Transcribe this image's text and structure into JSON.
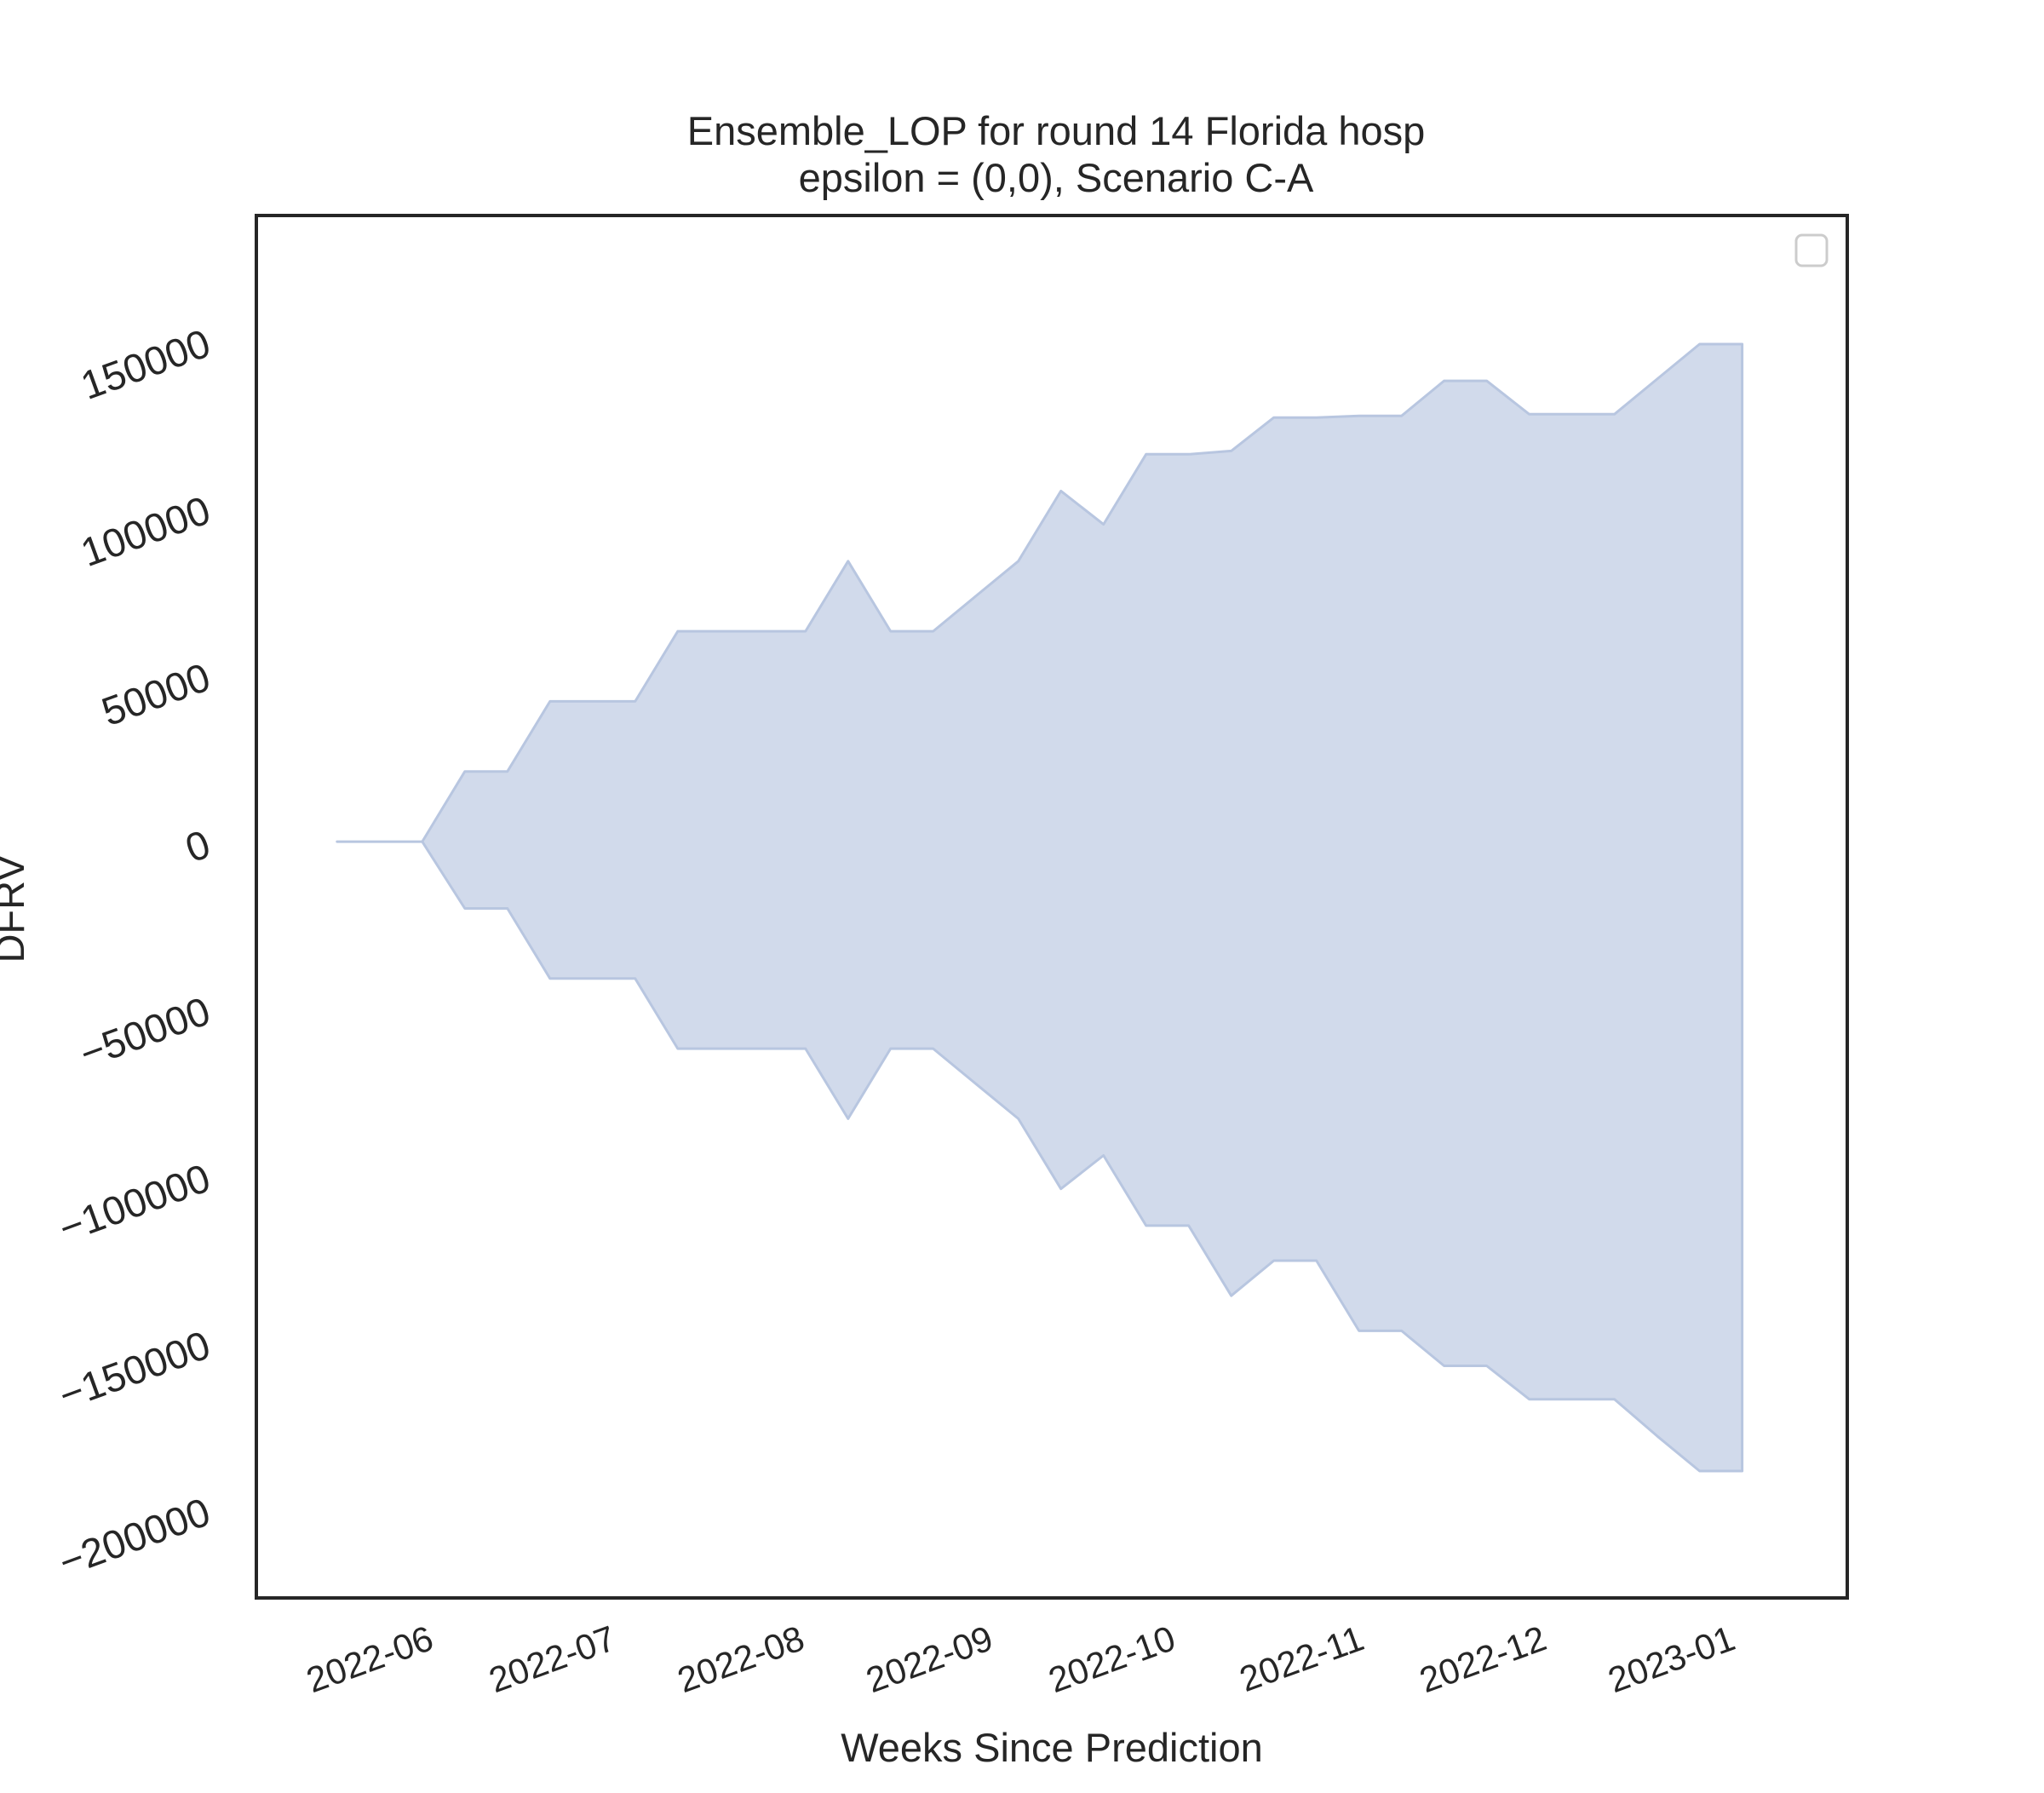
{
  "chart_data": {
    "type": "area",
    "title": "Ensemble_LOP for round 14 Florida hosp",
    "subtitle": "epsilon = (0,0), Scenario C-A",
    "xlabel": "Weeks Since Prediction",
    "ylabel": "DFRV",
    "x_tick_labels": [
      "2022-06",
      "2022-07",
      "2022-08",
      "2022-09",
      "2022-10",
      "2022-11",
      "2022-12",
      "2023-01"
    ],
    "x_tick_dates": [
      "2022-06-01",
      "2022-07-01",
      "2022-08-01",
      "2022-09-01",
      "2022-10-01",
      "2022-11-01",
      "2022-12-01",
      "2023-01-01"
    ],
    "y_tick_values": [
      -200000,
      -150000,
      -100000,
      -50000,
      0,
      50000,
      100000,
      150000
    ],
    "y_tick_labels": [
      "−200000",
      "−150000",
      "−100000",
      "−50000",
      "0",
      "50000",
      "100000",
      "150000"
    ],
    "xlim": [
      "2022-05-07",
      "2023-01-23"
    ],
    "ylim": [
      -226000,
      187000
    ],
    "grid": false,
    "legend": {
      "placement": "top-right",
      "entries": []
    },
    "fill_color": "#d1daeb",
    "edge_color": "#b8c6e0",
    "series": [
      {
        "x": [
          "2022-05-20",
          "2022-05-27",
          "2022-06-03",
          "2022-06-10",
          "2022-06-17",
          "2022-06-24",
          "2022-07-01",
          "2022-07-08",
          "2022-07-15",
          "2022-07-22",
          "2022-07-29",
          "2022-08-05",
          "2022-08-12",
          "2022-08-19",
          "2022-08-26",
          "2022-09-02",
          "2022-09-09",
          "2022-09-16",
          "2022-09-23",
          "2022-09-30",
          "2022-10-07",
          "2022-10-14",
          "2022-10-21",
          "2022-10-28",
          "2022-11-04",
          "2022-11-11",
          "2022-11-18",
          "2022-11-25",
          "2022-12-02",
          "2022-12-09",
          "2022-12-16",
          "2022-12-23",
          "2022-12-30",
          "2023-01-06"
        ],
        "lower": [
          0,
          0,
          0,
          -20000,
          -20000,
          -41000,
          -41000,
          -41000,
          -62000,
          -62000,
          -62000,
          -62000,
          -83000,
          -62000,
          -62000,
          -72500,
          -83000,
          -104000,
          -94000,
          -115000,
          -115000,
          -136000,
          -125500,
          -125500,
          -146500,
          -146500,
          -157000,
          -157000,
          -167000,
          -167000,
          -167000,
          -178000,
          -188500,
          -188500
        ],
        "upper": [
          0,
          0,
          0,
          21000,
          21000,
          42000,
          42000,
          42000,
          63000,
          63000,
          63000,
          63000,
          84000,
          63000,
          63000,
          73500,
          84000,
          105000,
          95000,
          116000,
          116000,
          117000,
          127000,
          127000,
          127500,
          127500,
          138000,
          138000,
          128000,
          128000,
          128000,
          138500,
          149000,
          149000
        ]
      }
    ]
  }
}
